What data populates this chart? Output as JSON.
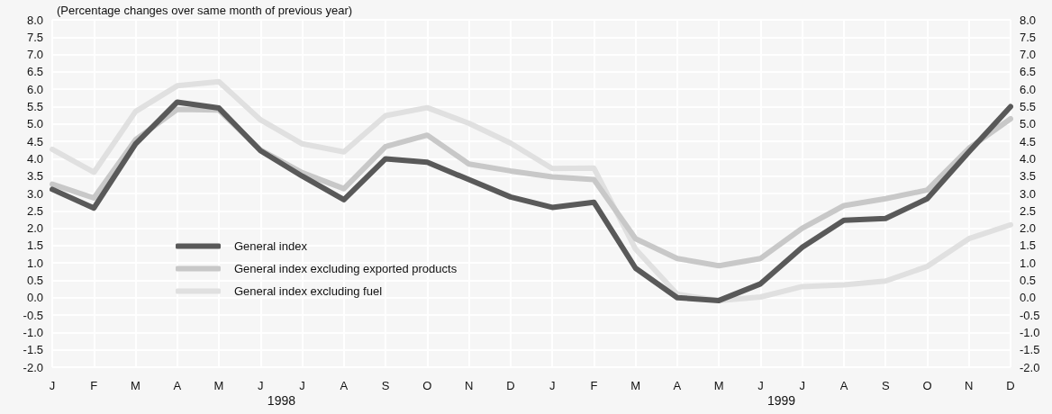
{
  "chart_data": {
    "type": "line",
    "subtitle": "(Percentage changes over same month of previous year)",
    "categories": [
      "J",
      "F",
      "M",
      "A",
      "M",
      "J",
      "J",
      "A",
      "S",
      "O",
      "N",
      "D",
      "J",
      "F",
      "M",
      "A",
      "M",
      "J",
      "J",
      "A",
      "S",
      "O",
      "N",
      "D"
    ],
    "annotations": [
      "1998",
      "1999"
    ],
    "series": [
      {
        "name": "General index",
        "color": "#595959",
        "values": [
          3.12,
          2.58,
          4.43,
          5.63,
          5.46,
          4.23,
          3.5,
          2.82,
          4.0,
          3.9,
          3.4,
          2.9,
          2.6,
          2.75,
          0.85,
          0.0,
          -0.08,
          0.4,
          1.45,
          2.23,
          2.28,
          2.85,
          4.2,
          5.5
        ]
      },
      {
        "name": "General index excluding exported products",
        "color": "#c8c8c8",
        "values": [
          3.27,
          2.87,
          4.55,
          5.42,
          5.4,
          4.25,
          3.6,
          3.14,
          4.35,
          4.68,
          3.85,
          3.65,
          3.48,
          3.4,
          1.7,
          1.13,
          0.92,
          1.13,
          2.0,
          2.65,
          2.85,
          3.1,
          4.3,
          5.15
        ]
      },
      {
        "name": "General index excluding fuel",
        "color": "#e0e0e0",
        "values": [
          4.27,
          3.61,
          5.36,
          6.1,
          6.22,
          5.12,
          4.43,
          4.2,
          5.24,
          5.47,
          5.02,
          4.45,
          3.72,
          3.73,
          1.4,
          0.1,
          -0.08,
          0.02,
          0.32,
          0.37,
          0.48,
          0.9,
          1.7,
          2.1
        ]
      }
    ],
    "ylim": [
      -2,
      8
    ],
    "yticks": [
      {
        "value": -2,
        "label": "-2.0"
      },
      {
        "value": -1.5,
        "label": "-1.5"
      },
      {
        "value": -1,
        "label": "-1.0"
      },
      {
        "value": -0.5,
        "label": "-0.5"
      },
      {
        "value": 0,
        "label": "0.0"
      },
      {
        "value": 0.5,
        "label": "0.5"
      },
      {
        "value": 1,
        "label": "1.0"
      },
      {
        "value": 1.5,
        "label": "1.5"
      },
      {
        "value": 2,
        "label": "2.0"
      },
      {
        "value": 2.5,
        "label": "2.5"
      },
      {
        "value": 3,
        "label": "3.0"
      },
      {
        "value": 3.5,
        "label": "3.5"
      },
      {
        "value": 4,
        "label": "4.0"
      },
      {
        "value": 4.5,
        "label": "4.5"
      },
      {
        "value": 5,
        "label": "5.0"
      },
      {
        "value": 5.5,
        "label": "5.5"
      },
      {
        "value": 6,
        "label": "6.0"
      },
      {
        "value": 6.5,
        "label": "6.5"
      },
      {
        "value": 7,
        "label": "7.0"
      },
      {
        "value": 7.5,
        "label": "7.5"
      },
      {
        "value": 8,
        "label": "8.0"
      }
    ],
    "y2lim": [
      -2,
      8
    ],
    "y2ticks": [
      {
        "value": -2,
        "label": "-2.0"
      },
      {
        "value": -1.5,
        "label": "-1.5"
      },
      {
        "value": -1,
        "label": "-1.0"
      },
      {
        "value": -0.5,
        "label": "-0.5"
      },
      {
        "value": 0,
        "label": "0.0"
      },
      {
        "value": 0.5,
        "label": "0.5"
      },
      {
        "value": 1,
        "label": "1.0"
      },
      {
        "value": 1.5,
        "label": "1.5"
      },
      {
        "value": 2,
        "label": "2.0"
      },
      {
        "value": 2.5,
        "label": "2.5"
      },
      {
        "value": 3,
        "label": "3.0"
      },
      {
        "value": 3.5,
        "label": "3.5"
      },
      {
        "value": 4,
        "label": "4.0"
      },
      {
        "value": 4.5,
        "label": "4.5"
      },
      {
        "value": 5,
        "label": "5.0"
      },
      {
        "value": 5.5,
        "label": "5.5"
      },
      {
        "value": 6,
        "label": "6.0"
      },
      {
        "value": 6.5,
        "label": "6.5"
      },
      {
        "value": 7,
        "label": "7.0"
      },
      {
        "value": 7.5,
        "label": "7.5"
      },
      {
        "value": 8,
        "label": "8.0"
      }
    ],
    "grid": true,
    "legend": "bottom left",
    "marker": "none",
    "line_style": "solid"
  }
}
